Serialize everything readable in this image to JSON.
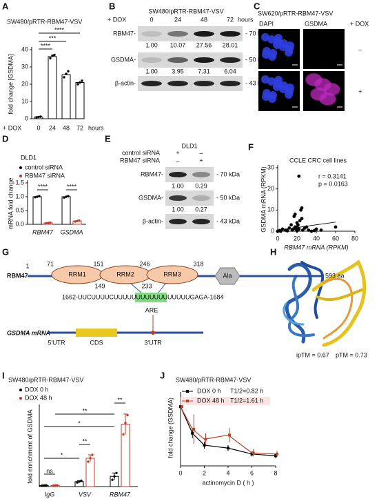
{
  "panel_labels": [
    "A",
    "B",
    "C",
    "D",
    "E",
    "F",
    "G",
    "H",
    "I",
    "J"
  ],
  "chart_data": [
    {
      "type": "bar",
      "title": "SW480/pRTR-RBM47-VSV",
      "y_label": "fold change [GSDMA]",
      "x_prefix": "+ DOX",
      "x_suffix": "hours",
      "categories": [
        "0",
        "24",
        "48",
        "72"
      ],
      "values": [
        1,
        36,
        25.5,
        21
      ],
      "points": [
        [
          0.8,
          1,
          1.2
        ],
        [
          35,
          36.5,
          37
        ],
        [
          24,
          26,
          27.5
        ],
        [
          20,
          21,
          22
        ]
      ],
      "color": "#000000",
      "ylim": [
        0,
        40
      ],
      "yticks": [
        0,
        10,
        20,
        30,
        40
      ],
      "annotations": [
        "****",
        "***",
        "****"
      ]
    },
    {
      "type": "grouped_bar",
      "title": "DLD1",
      "y_label": "mRNA fold change",
      "categories": [
        "RBM47",
        "GSDMA"
      ],
      "series": [
        {
          "name": "control siRNA",
          "color": "#000000",
          "values": [
            1,
            1
          ],
          "points": [
            [
              0.98,
              1,
              1.02
            ],
            [
              0.97,
              1,
              1.02
            ]
          ]
        },
        {
          "name": "RBM47 siRNA",
          "color": "#c0392b",
          "values": [
            0.05,
            0.12
          ],
          "points": [
            [
              0.04,
              0.05,
              0.06
            ],
            [
              0.1,
              0.12,
              0.14
            ]
          ]
        }
      ],
      "ylim": [
        0,
        1.5
      ],
      "yticks": [
        {
          "value": 0,
          "label": "0.0"
        },
        {
          "value": 0.5,
          "label": "0.5"
        },
        {
          "value": 1,
          "label": "1.0"
        },
        {
          "value": 1.5,
          "label": "1.5"
        }
      ],
      "annotations": [
        "****",
        "****"
      ]
    },
    {
      "type": "scatter",
      "title": "CCLE CRC cell lines",
      "stats": [
        "r = 0.3141",
        "p = 0.0163"
      ],
      "x_label": "RBM47 mRNA (RPKM)",
      "y_label": "GSDMA mRNA (RPKM)",
      "color": "#000000",
      "x": [
        0,
        2,
        3,
        5,
        8,
        10,
        12,
        14,
        15,
        16,
        17,
        18,
        18,
        19,
        20,
        20,
        21,
        22,
        22,
        23,
        24,
        25,
        25,
        26,
        28,
        30,
        32,
        35,
        38,
        40,
        45,
        60,
        20,
        22
      ],
      "y": [
        0,
        0.3,
        0,
        1,
        0.5,
        0.2,
        1.5,
        3,
        0.5,
        1,
        7,
        2,
        8,
        1,
        2,
        4,
        3,
        26,
        1,
        5,
        10,
        11,
        6,
        0.5,
        1.5,
        2,
        0.5,
        0,
        0.3,
        1,
        0.5,
        2,
        0.2,
        1
      ],
      "trendline": {
        "x": [
          0,
          60
        ],
        "y": [
          0.5,
          4.3
        ]
      },
      "xlim": [
        0,
        80
      ],
      "ylim": [
        0,
        30
      ],
      "xticks": [
        0,
        20,
        40,
        60,
        80
      ],
      "yticks": [
        0,
        10,
        20,
        30
      ]
    },
    {
      "type": "grouped_bar",
      "title": "SW480/pRTR-RBM47-VSV",
      "y_label": "fold enrichment of GSDMA",
      "categories": [
        "IgG",
        "VSV",
        "RBM47"
      ],
      "series": [
        {
          "name": "DOX 0 h",
          "color": "#000000",
          "values": [
            5,
            22,
            45
          ],
          "errors": [
            2,
            4,
            15
          ],
          "points": [
            [
              4,
              5,
              6
            ],
            [
              18,
              22,
              26
            ],
            [
              30,
              45,
              60
            ]
          ]
        },
        {
          "name": "DOX 48 h",
          "color": "#c0392b",
          "values": [
            5,
            125,
            275
          ],
          "errors": [
            2,
            15,
            45
          ],
          "points": [
            [
              4,
              5,
              6
            ],
            [
              110,
              125,
              140
            ],
            [
              230,
              280,
              315
            ]
          ]
        }
      ],
      "ylim": [
        0,
        350
      ],
      "annotations": [
        "**",
        "**",
        "*",
        "**",
        "*",
        "ns"
      ]
    },
    {
      "type": "line",
      "title": "SW480/pRTR-RBM47-VSV",
      "x_label": "actinomycin D ( h )",
      "y_label": "fold change (GSDMA)",
      "x": [
        0,
        1,
        2,
        4,
        6,
        8
      ],
      "series": [
        {
          "name": "DOX 0 h",
          "half_life_label": "T1/2=0.82 h",
          "color": "#000000",
          "values": [
            1,
            0.55,
            0.35,
            0.3,
            0.2,
            0.17
          ],
          "errors": [
            0.02,
            0.08,
            0.06,
            0.05,
            0.04,
            0.04
          ]
        },
        {
          "name": "DOX 48 h",
          "half_life_label": "T1/2=1.61 h",
          "color": "#b5452a",
          "values": [
            1,
            0.62,
            0.45,
            0.52,
            0.22,
            0.2
          ],
          "errors": [
            0.02,
            0.25,
            0.1,
            0.12,
            0.06,
            0.05
          ]
        }
      ],
      "xlim": [
        0,
        8
      ],
      "ylim": [
        0,
        1.2
      ],
      "xticks": [
        0,
        2,
        4,
        6,
        8
      ]
    }
  ],
  "blot_b": {
    "title": "SW480/pRTR-RBM47-VSV",
    "condition": "+ DOX",
    "lanes": [
      "0",
      "24",
      "48",
      "72"
    ],
    "unit": "hours",
    "rows": [
      {
        "label": "RBM47-",
        "size": "- 70 kDa",
        "quant": [
          "1.00",
          "10.07",
          "27.56",
          "28.01"
        ]
      },
      {
        "label": "GSDMA-",
        "size": "- 50 kDa",
        "quant": [
          "1.00",
          "3.95",
          "7.31",
          "6.04"
        ]
      },
      {
        "label": "β-actin-",
        "size": "- 43 kDa"
      }
    ]
  },
  "images_c": {
    "title": "SW620/pRTR-RBM47-VSV",
    "channels": [
      "DAPI",
      "GSDMA"
    ],
    "condition": "+ DOX",
    "rows": [
      "–",
      "+"
    ]
  },
  "blot_e": {
    "title": "DLD1",
    "conditions": [
      {
        "label": "control siRNA",
        "signs": [
          "+",
          "–"
        ]
      },
      {
        "label": "RBM47 siRNA",
        "signs": [
          "–",
          "+"
        ]
      }
    ],
    "rows": [
      {
        "label": "RBM47-",
        "size": "- 70 kDa",
        "quant": [
          "1.00",
          "0.29"
        ]
      },
      {
        "label": "GSDMA-",
        "size": "- 50 kDa",
        "quant": [
          "1.00",
          "0.27"
        ]
      },
      {
        "label": "β-actin-",
        "size": "- 43 kDa"
      }
    ]
  },
  "diagram_g": {
    "protein": "RBM47",
    "length": "593 aa",
    "start": "1",
    "domains": [
      {
        "label": "RRM1",
        "start": "71",
        "end": "149"
      },
      {
        "label": "RRM2",
        "start": "151",
        "end": "233"
      },
      {
        "label": "RRM3",
        "start": "246",
        "end": "318"
      }
    ],
    "tail": "Ala",
    "sequence": "1662-UUCUUUUCUUUUUUUUUUUUUUUUUGAGA-1684",
    "element": "ARE",
    "mrna": "GSDMA mRNA",
    "regions": [
      "5'UTR",
      "CDS",
      "3'UTR"
    ]
  },
  "structure_h": {
    "iptm": "ipTM = 0.67",
    "ptm": "pTM = 0.73"
  }
}
